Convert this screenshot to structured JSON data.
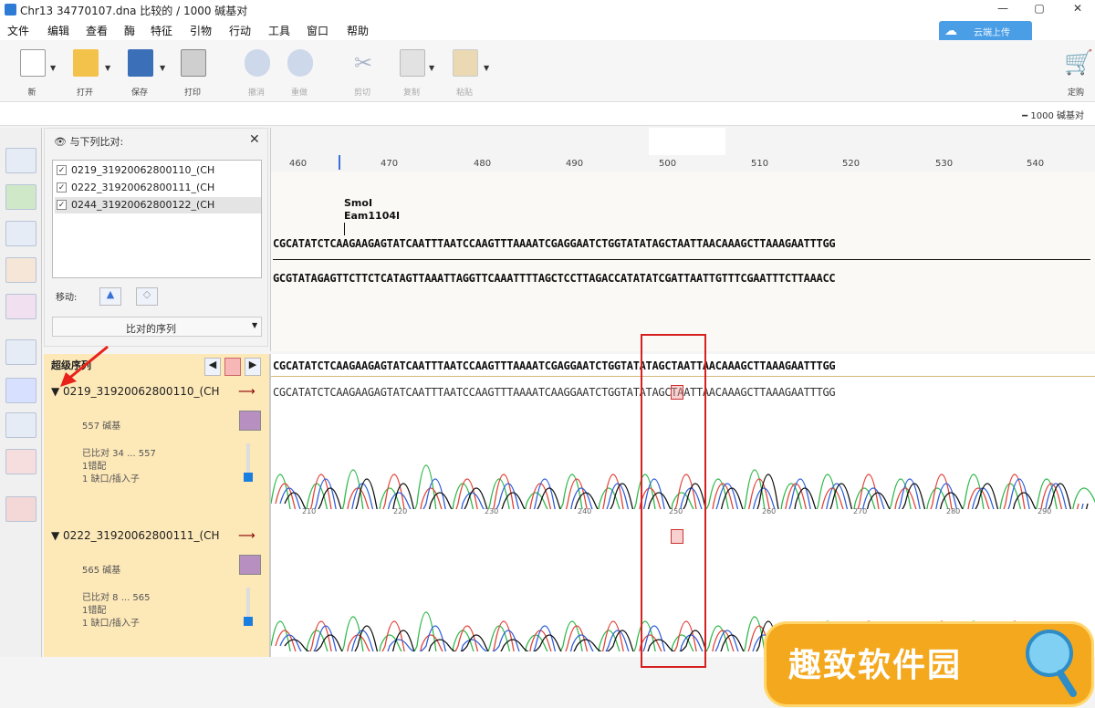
{
  "window": {
    "title": "Chr13 34770107.dna  比较的 / 1000 碱基对"
  },
  "menu": [
    "文件",
    "编辑",
    "查看",
    "酶",
    "特征",
    "引物",
    "行动",
    "工具",
    "窗口",
    "帮助"
  ],
  "cloud_button": {
    "label": "云端上传"
  },
  "toolbar": {
    "new": "新",
    "open": "打开",
    "save": "保存",
    "print": "打印",
    "undo": "撤消",
    "redo": "重做",
    "cut": "剪切",
    "copy": "复制",
    "paste": "粘贴",
    "order": "定购"
  },
  "sequence_size": "1000 碱基对",
  "panel": {
    "header": "与下列比对:",
    "items": [
      {
        "checked": true,
        "name": "0219_31920062800110_(CH"
      },
      {
        "checked": true,
        "name": "0222_31920062800111_(CH"
      },
      {
        "checked": true,
        "name": "0244_31920062800122_(CH"
      }
    ],
    "move_label": "移动:",
    "align_button": "比对的序列"
  },
  "ruler_ticks": [
    "460",
    "470",
    "480",
    "490",
    "500",
    "510",
    "520",
    "530",
    "540"
  ],
  "enzymes": [
    "SmoI",
    "Eam1104I"
  ],
  "top_strand": "CGCATATCTCAAGAAGAGTATCAATTTAATCCAAGTTTAAAATCGAGGAATCTGGTATATAGCTAATTAACAAAGCTTAAAGAATTTGG",
  "bottom_strand": "GCGTATAGAGTTCTTCTCATAGTTAAATTAGGTTCAAATTTTAGCTCCTTAGACCATATATCGATTAATTGTTTCGAATTTCTTAAACC",
  "alignment": {
    "header": "超级序列",
    "consensus": "CGCATATCTCAAGAAGAGTATCAATTTAATCCAAGTTTAAAATCGAGGAATCTGGTATATAGCTAATTAACAAAGCTTAAAGAATTTGG",
    "traces": [
      {
        "name": "0219_31920062800110_(CH",
        "length": "557 碱基",
        "aligned": "已比对 34 ... 557",
        "mismatches": "1错配",
        "gaps": "1 缺口/插入子",
        "sequence": "CGCATATCTCAAGAAGAGTATCAATTTAATCCAAGTTTAAAATCAAGGAATCTGGTATATAGCTAATTAACAAAGCTTAAAGAATTTGG",
        "ticks": [
          "210",
          "220",
          "230",
          "240",
          "250",
          "260",
          "270",
          "280",
          "290"
        ]
      },
      {
        "name": "0222_31920062800111_(CH",
        "length": "565 碱基",
        "aligned": "已比对 8 ... 565",
        "mismatches": "1错配",
        "gaps": "1 缺口/插入子"
      }
    ]
  },
  "watermark": "趣致软件园"
}
